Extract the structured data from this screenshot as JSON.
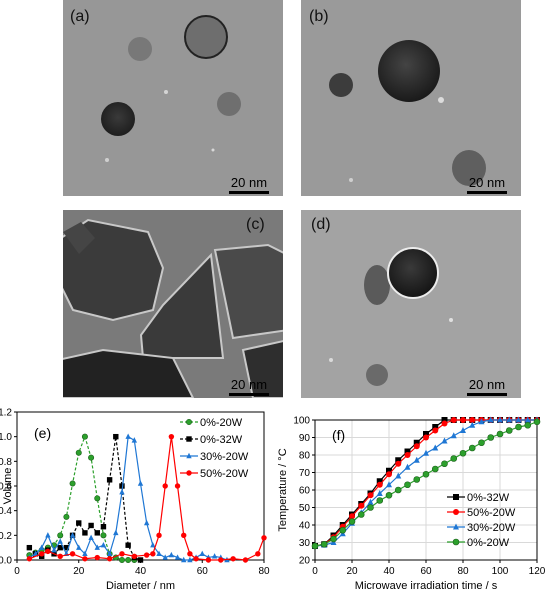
{
  "tem_panels": [
    {
      "label": "(a)",
      "scale_bar": "20 nm"
    },
    {
      "label": "(b)",
      "scale_bar": "20 nm"
    },
    {
      "label": "(c)",
      "scale_bar": "20 nm"
    },
    {
      "label": "(d)",
      "scale_bar": "20 nm"
    }
  ],
  "chart_data": [
    {
      "type": "line",
      "panel_label": "(e)",
      "xlabel": "Diameter / nm",
      "ylabel": "Volume",
      "xlim": [
        0,
        80
      ],
      "ylim": [
        0,
        1.2
      ],
      "xticks": [
        "0",
        "20",
        "40",
        "60",
        "80"
      ],
      "yticks": [
        "0.0",
        "0.2",
        "0.4",
        "0.6",
        "0.8",
        "1.0",
        "1.2"
      ],
      "legend_position": "top-right",
      "grid": false,
      "series": [
        {
          "name": "0%-20W",
          "color": "#2ca02c",
          "marker": "circle",
          "line": "dashed",
          "x": [
            4,
            6,
            8,
            10,
            12,
            14,
            16,
            18,
            20,
            22,
            24,
            26,
            28,
            30,
            32,
            34,
            36,
            38
          ],
          "y": [
            0.04,
            0.06,
            0.08,
            0.1,
            0.12,
            0.2,
            0.35,
            0.62,
            0.87,
            1.0,
            0.83,
            0.5,
            0.2,
            0.05,
            0.02,
            0,
            0,
            0
          ]
        },
        {
          "name": "0%-32W",
          "color": "#000000",
          "marker": "square",
          "line": "dashed",
          "x": [
            4,
            6,
            8,
            10,
            12,
            14,
            16,
            18,
            20,
            22,
            24,
            26,
            28,
            30,
            32,
            34,
            36,
            38,
            40
          ],
          "y": [
            0.1,
            0.05,
            0.03,
            0.08,
            0.05,
            0.1,
            0.1,
            0.2,
            0.3,
            0.22,
            0.28,
            0.22,
            0.27,
            0.65,
            1.0,
            0.6,
            0.12,
            0.02,
            0
          ]
        },
        {
          "name": "30%-20W",
          "color": "#1f77d4",
          "marker": "triangle",
          "line": "solid",
          "x": [
            4,
            6,
            8,
            10,
            12,
            14,
            16,
            18,
            20,
            22,
            24,
            26,
            28,
            30,
            32,
            34,
            36,
            38,
            40,
            42,
            44,
            46,
            48,
            50,
            52,
            54,
            56,
            58,
            60,
            62,
            64,
            66,
            68
          ],
          "y": [
            0.02,
            0.05,
            0.1,
            0.2,
            0.08,
            0.15,
            0.05,
            0.2,
            0.1,
            0.05,
            0.18,
            0.1,
            0.12,
            0.05,
            0.22,
            0.55,
            1.0,
            0.97,
            0.62,
            0.3,
            0.12,
            0.05,
            0.02,
            0.04,
            0.02,
            0,
            0,
            0.02,
            0.05,
            0.02,
            0.03,
            0.02,
            0
          ]
        },
        {
          "name": "50%-20W",
          "color": "#ff0000",
          "marker": "circle",
          "line": "solid",
          "x": [
            4,
            8,
            10,
            14,
            18,
            22,
            26,
            30,
            34,
            38,
            42,
            44,
            46,
            48,
            50,
            52,
            54,
            56,
            58,
            62,
            66,
            70,
            74,
            78,
            80
          ],
          "y": [
            0.01,
            0.05,
            0.07,
            0.03,
            0.05,
            0.01,
            0.02,
            0.01,
            0.05,
            0.03,
            0.04,
            0.05,
            0.2,
            0.6,
            1.0,
            0.6,
            0.2,
            0.05,
            0.01,
            0,
            0,
            0.01,
            0,
            0.05,
            0.18
          ]
        }
      ]
    },
    {
      "type": "line",
      "panel_label": "(f)",
      "xlabel": "Microwave irradiation time / s",
      "ylabel": "Temperature / °C",
      "xlim": [
        0,
        120
      ],
      "ylim": [
        20,
        100
      ],
      "xticks": [
        "0",
        "20",
        "40",
        "60",
        "80",
        "100",
        "120"
      ],
      "yticks": [
        "20",
        "30",
        "40",
        "50",
        "60",
        "70",
        "80",
        "90",
        "100"
      ],
      "legend_position": "bottom-right",
      "grid": true,
      "series": [
        {
          "name": "0%-32W",
          "color": "#000000",
          "marker": "square",
          "line": "solid",
          "x": [
            0,
            5,
            10,
            15,
            20,
            25,
            30,
            35,
            40,
            45,
            50,
            55,
            60,
            65,
            70,
            75,
            80,
            85,
            90,
            95,
            100,
            105,
            110,
            115,
            120
          ],
          "y": [
            28,
            29,
            34,
            40,
            46,
            52,
            58,
            65,
            71,
            77,
            82,
            87,
            92,
            96,
            100,
            100,
            100,
            100,
            100,
            100,
            100,
            100,
            100,
            100,
            100
          ]
        },
        {
          "name": "50%-20W",
          "color": "#ff0000",
          "marker": "circle",
          "line": "solid",
          "x": [
            0,
            5,
            10,
            15,
            20,
            25,
            30,
            35,
            40,
            45,
            50,
            55,
            60,
            65,
            70,
            75,
            80,
            85,
            90,
            95,
            100,
            105,
            110,
            115,
            120
          ],
          "y": [
            28,
            29,
            33,
            39,
            45,
            51,
            57,
            63,
            69,
            75,
            80,
            85,
            90,
            94,
            98,
            100,
            100,
            100,
            100,
            100,
            100,
            100,
            100,
            100,
            100
          ]
        },
        {
          "name": "30%-20W",
          "color": "#1f77d4",
          "marker": "triangle",
          "line": "solid",
          "x": [
            0,
            5,
            10,
            15,
            20,
            25,
            30,
            35,
            40,
            45,
            50,
            55,
            60,
            65,
            70,
            75,
            80,
            85,
            90,
            95,
            100,
            105,
            110,
            115,
            120
          ],
          "y": [
            28,
            28.5,
            30,
            35,
            41,
            47,
            53,
            58,
            63,
            68,
            73,
            77,
            81,
            84,
            88,
            91,
            94,
            97,
            99,
            100,
            100,
            100,
            100,
            100,
            100
          ]
        },
        {
          "name": "0%-20W",
          "color": "#2ca02c",
          "marker": "circle",
          "line": "solid",
          "x": [
            0,
            5,
            10,
            15,
            20,
            25,
            30,
            35,
            40,
            45,
            50,
            55,
            60,
            65,
            70,
            75,
            80,
            85,
            90,
            95,
            100,
            105,
            110,
            115,
            120
          ],
          "y": [
            28,
            29,
            32,
            37,
            42,
            46,
            50,
            54,
            57,
            60,
            63,
            66,
            69,
            72,
            75,
            78,
            81,
            84,
            87,
            90,
            92,
            94,
            96,
            97,
            99
          ]
        }
      ]
    }
  ]
}
